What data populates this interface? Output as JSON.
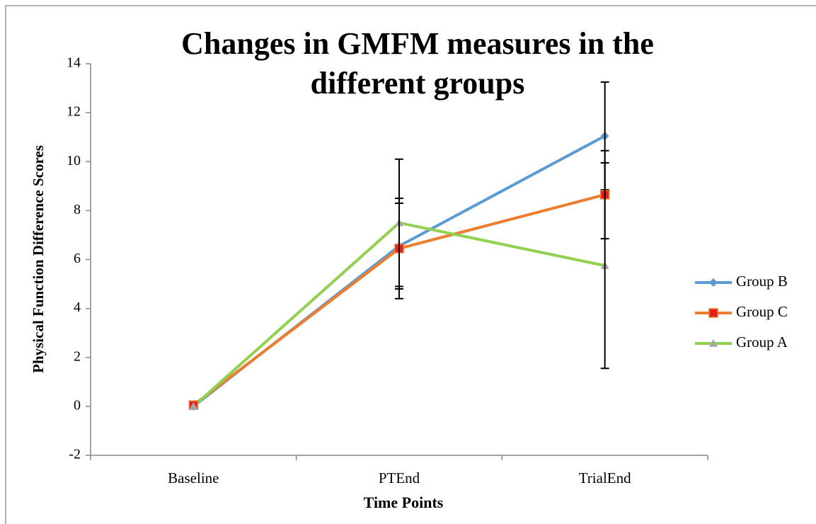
{
  "chart_data": {
    "type": "line",
    "title": "Changes in GMFM measures in the different groups",
    "x_label": "Time Points",
    "y_label": "Physical Function Difference Scores",
    "categories": [
      "Baseline",
      "PTEnd",
      "TrialEnd"
    ],
    "series": [
      {
        "name": "Group B",
        "color": "#5b9bd5",
        "marker": "diamond",
        "values": [
          0,
          6.55,
          11.05
        ],
        "errors": [
          null,
          1.75,
          2.2
        ]
      },
      {
        "name": "Group C",
        "color": "#ed7d31",
        "marker": "square",
        "values": [
          0.05,
          6.45,
          8.65
        ],
        "errors": [
          null,
          2.05,
          1.8
        ]
      },
      {
        "name": "Group A",
        "color": "#92d050",
        "marker": "triangle",
        "values": [
          0,
          7.5,
          5.75
        ],
        "errors": [
          null,
          2.6,
          4.2
        ]
      }
    ],
    "ylim": [
      -2,
      14
    ],
    "yticks": [
      -2,
      0,
      2,
      4,
      6,
      8,
      10,
      12,
      14
    ],
    "legend": "right"
  }
}
